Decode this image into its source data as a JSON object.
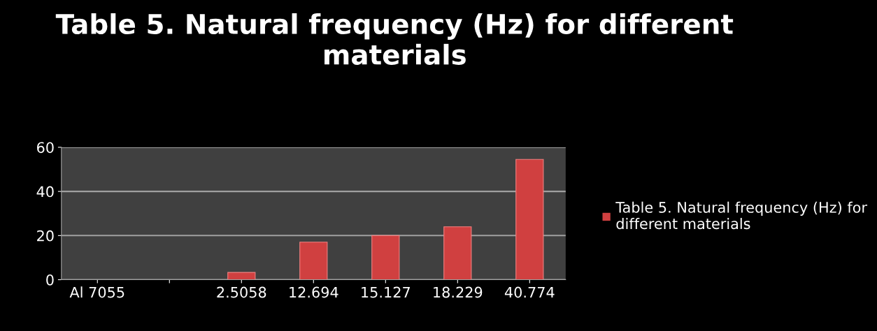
{
  "chart_data": {
    "type": "bar",
    "title": "Table 5. Natural frequency (Hz) for different materials",
    "categories": [
      "Al 7055",
      null,
      "2.5058",
      "12.694",
      "15.127",
      "18.229",
      "40.774"
    ],
    "series": [
      {
        "name": "Table 5. Natural frequency (Hz) for different materials",
        "color": "#d04040",
        "values": [
          null,
          null,
          3.3,
          17,
          20,
          24,
          54.5
        ]
      }
    ],
    "ylim": [
      0,
      60
    ],
    "yticks": [
      0,
      20,
      40,
      60
    ],
    "grid": "y",
    "legend": "right"
  }
}
